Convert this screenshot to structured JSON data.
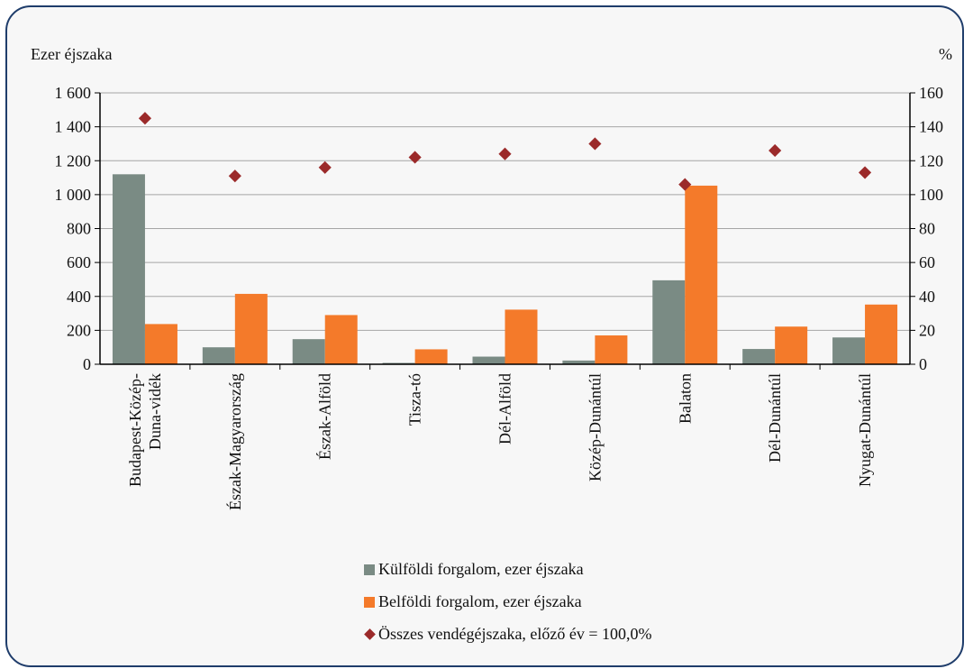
{
  "chart_data": {
    "type": "bar",
    "left_axis_label": "Ezer éjszaka",
    "right_axis_label": "%",
    "categories": [
      [
        "Budapest-Közép-",
        "Duna-vidék"
      ],
      [
        "Észak-Magyarország"
      ],
      [
        "Észak-Alföld"
      ],
      [
        "Tisza-tó"
      ],
      [
        "Dél-Alföld"
      ],
      [
        "Közép-Dunántúl"
      ],
      [
        "Balaton"
      ],
      [
        "Dél-Dunántúl"
      ],
      [
        "Nyugat-Dunántúl"
      ]
    ],
    "y_left": {
      "min": 0,
      "max": 1600,
      "ticks": [
        0,
        200,
        400,
        600,
        800,
        1000,
        1200,
        1400,
        1600
      ],
      "tick_labels": [
        "0",
        "200",
        "400",
        "600",
        "800",
        "1 000",
        "1 200",
        "1 400",
        "1 600"
      ]
    },
    "y_right": {
      "min": 0,
      "max": 160,
      "ticks": [
        0,
        20,
        40,
        60,
        80,
        100,
        120,
        140,
        160
      ],
      "tick_labels": [
        "0",
        "20",
        "40",
        "60",
        "80",
        "100",
        "120",
        "140",
        "160"
      ]
    },
    "grid": true,
    "series": [
      {
        "name": "Külföldi forgalom, ezer éjszaka",
        "type": "bar",
        "axis": "left",
        "color": "#7a8b84",
        "values": [
          1120,
          100,
          148,
          8,
          45,
          22,
          495,
          90,
          158
        ]
      },
      {
        "name": "Belföldi forgalom, ezer éjszaka",
        "type": "bar",
        "axis": "left",
        "color": "#f47a2a",
        "values": [
          237,
          415,
          290,
          88,
          322,
          170,
          1053,
          222,
          352
        ]
      },
      {
        "name": "Összes vendégéjszaka, előző év = 100,0%",
        "type": "scatter",
        "axis": "right",
        "color": "#9b2a2a",
        "values": [
          145,
          111,
          116,
          122,
          124,
          130,
          106,
          126,
          113
        ]
      }
    ],
    "legend_position": "bottom"
  }
}
